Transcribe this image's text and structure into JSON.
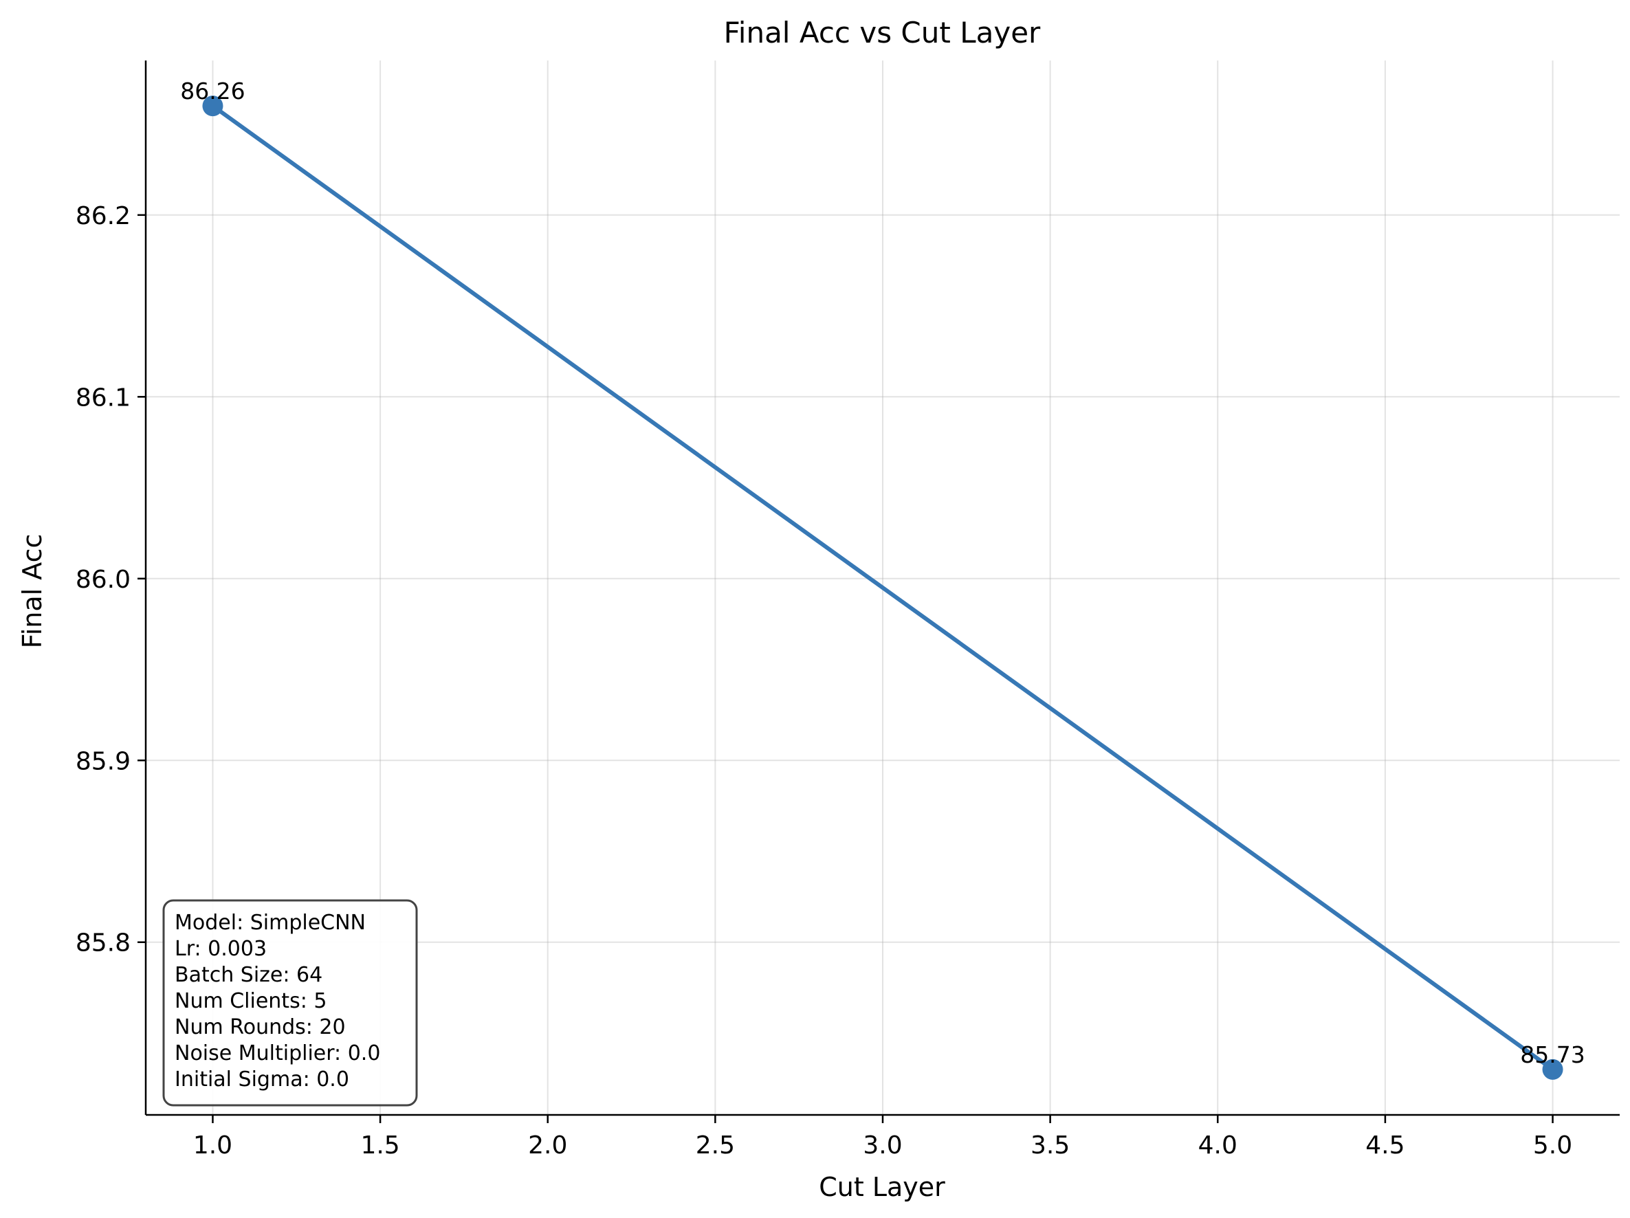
{
  "chart_data": {
    "type": "line",
    "title": "Final Acc vs Cut Layer",
    "xlabel": "Cut Layer",
    "ylabel": "Final Acc",
    "x": [
      1.0,
      5.0
    ],
    "series": [
      {
        "values": [
          86.26,
          85.73
        ],
        "color": "#3778b5",
        "point_labels": [
          "86.26",
          "85.73"
        ]
      }
    ],
    "xlim": [
      0.8,
      5.2
    ],
    "ylim": [
      85.705,
      86.285
    ],
    "xticks": [
      1.0,
      1.5,
      2.0,
      2.5,
      3.0,
      3.5,
      4.0,
      4.5,
      5.0
    ],
    "xtick_labels": [
      "1.0",
      "1.5",
      "2.0",
      "2.5",
      "3.0",
      "3.5",
      "4.0",
      "4.5",
      "5.0"
    ],
    "yticks": [
      85.8,
      85.9,
      86.0,
      86.1,
      86.2
    ],
    "ytick_labels": [
      "85.8",
      "85.9",
      "86.0",
      "86.1",
      "86.2"
    ],
    "grid": true,
    "annotation_box": {
      "placement": "bottom-left",
      "lines": [
        "Model: SimpleCNN",
        "Lr: 0.003",
        "Batch Size: 64",
        "Num Clients: 5",
        "Num Rounds: 20",
        "Noise Multiplier: 0.0",
        "Initial Sigma: 0.0"
      ]
    }
  }
}
